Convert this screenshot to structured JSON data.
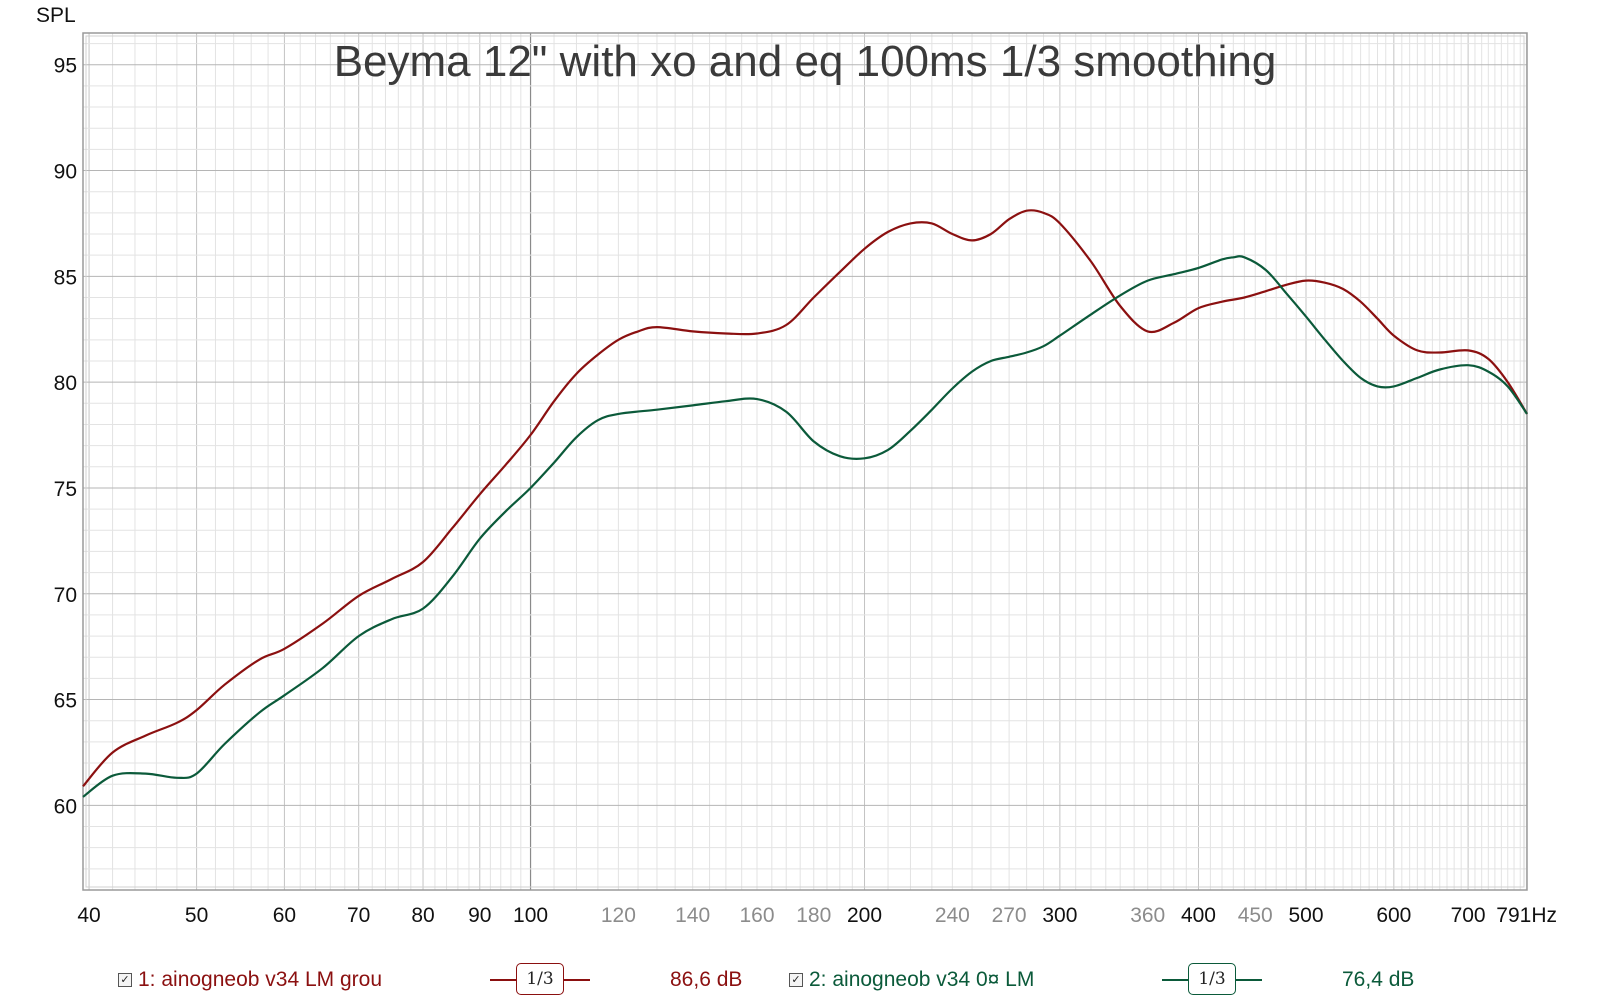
{
  "chart_data": {
    "type": "line",
    "title": "Beyma 12\" with xo and eq 100ms 1/3 smoothing",
    "ylabel": "SPL",
    "xunit": "Hz",
    "xscale": "log",
    "xlim": [
      39.5,
      791
    ],
    "ylim": [
      56,
      96.5
    ],
    "grid": true,
    "y_ticks": [
      60,
      65,
      70,
      75,
      80,
      85,
      90,
      95
    ],
    "x_ticks_major": [
      40,
      50,
      60,
      70,
      80,
      90,
      100,
      200,
      300,
      400,
      500,
      600,
      700
    ],
    "x_ticks_minor": [
      120,
      140,
      160,
      180,
      240,
      270,
      360,
      450
    ],
    "x_end_label": "791Hz",
    "series": [
      {
        "name": "1: ainogneob v34 LM grou",
        "color": "#8b1010",
        "smoothing": "1/3",
        "level": "86,6 dB",
        "x": [
          39.5,
          42,
          45,
          48,
          50,
          53,
          57,
          60,
          65,
          70,
          75,
          80,
          85,
          90,
          95,
          100,
          105,
          110,
          115,
          120,
          125,
          130,
          140,
          150,
          160,
          170,
          180,
          190,
          200,
          210,
          220,
          230,
          240,
          250,
          260,
          270,
          280,
          290,
          300,
          320,
          340,
          360,
          380,
          400,
          420,
          440,
          460,
          480,
          500,
          520,
          540,
          560,
          580,
          600,
          630,
          660,
          700,
          730,
          760,
          791
        ],
        "y": [
          60.9,
          62.5,
          63.3,
          63.9,
          64.5,
          65.7,
          66.9,
          67.4,
          68.6,
          69.9,
          70.7,
          71.5,
          73.1,
          74.7,
          76.1,
          77.5,
          79.1,
          80.4,
          81.3,
          82.0,
          82.4,
          82.6,
          82.4,
          82.3,
          82.3,
          82.7,
          84.0,
          85.2,
          86.3,
          87.1,
          87.5,
          87.5,
          87.0,
          86.7,
          87.0,
          87.7,
          88.1,
          88.0,
          87.5,
          85.7,
          83.6,
          82.4,
          82.8,
          83.5,
          83.8,
          84.0,
          84.3,
          84.6,
          84.8,
          84.7,
          84.4,
          83.8,
          83.0,
          82.2,
          81.5,
          81.4,
          81.5,
          81.1,
          80.0,
          78.5
        ]
      },
      {
        "name": "2: ainogneob v34 0¤ LM",
        "color": "#0b5a3a",
        "smoothing": "1/3",
        "level": "76,4 dB",
        "x": [
          39.5,
          42,
          45,
          48,
          50,
          53,
          57,
          60,
          65,
          70,
          75,
          80,
          85,
          90,
          95,
          100,
          105,
          110,
          115,
          120,
          130,
          140,
          150,
          160,
          170,
          180,
          190,
          200,
          210,
          220,
          230,
          240,
          250,
          260,
          270,
          280,
          290,
          300,
          320,
          340,
          360,
          380,
          400,
          420,
          430,
          440,
          460,
          480,
          500,
          520,
          540,
          560,
          580,
          600,
          630,
          660,
          700,
          730,
          760,
          791
        ],
        "y": [
          60.4,
          61.4,
          61.5,
          61.3,
          61.5,
          62.9,
          64.4,
          65.2,
          66.5,
          68.0,
          68.8,
          69.3,
          70.8,
          72.6,
          73.9,
          75.0,
          76.2,
          77.4,
          78.2,
          78.5,
          78.7,
          78.9,
          79.1,
          79.2,
          78.6,
          77.2,
          76.5,
          76.4,
          76.8,
          77.7,
          78.7,
          79.7,
          80.5,
          81.0,
          81.2,
          81.4,
          81.7,
          82.2,
          83.2,
          84.1,
          84.8,
          85.1,
          85.4,
          85.8,
          85.9,
          85.9,
          85.3,
          84.2,
          83.1,
          82.0,
          81.0,
          80.2,
          79.8,
          79.8,
          80.2,
          80.6,
          80.8,
          80.5,
          79.8,
          78.5
        ]
      }
    ]
  }
}
